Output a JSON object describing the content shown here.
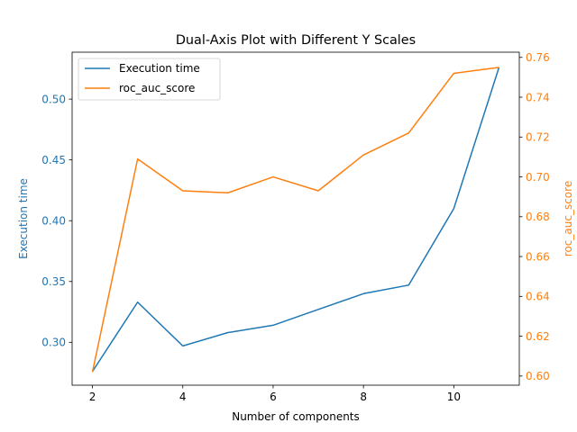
{
  "chart_data": {
    "type": "line",
    "title": "Dual-Axis Plot with Different Y Scales",
    "xlabel": "Number of components",
    "ylabel_left": "Execution time",
    "ylabel_right": "roc_auc_score",
    "x": [
      2,
      3,
      4,
      5,
      6,
      7,
      8,
      9,
      10,
      11
    ],
    "xlim": [
      1.55,
      11.45
    ],
    "xticks": [
      2,
      4,
      6,
      8,
      10
    ],
    "ylim_left": [
      0.2647,
      0.5386
    ],
    "yticks_left": [
      "0.30",
      "0.35",
      "0.40",
      "0.45",
      "0.50"
    ],
    "ylim_right": [
      0.5954,
      0.7626
    ],
    "yticks_right": [
      "0.60",
      "0.62",
      "0.64",
      "0.66",
      "0.68",
      "0.70",
      "0.72",
      "0.74",
      "0.76"
    ],
    "grid": false,
    "legend_position": "top-left",
    "series": [
      {
        "name": "Execution time",
        "axis": "left",
        "color": "#1f77b4",
        "values": [
          0.276,
          0.333,
          0.297,
          0.308,
          0.314,
          0.327,
          0.34,
          0.347,
          0.41,
          0.526
        ]
      },
      {
        "name": "roc_auc_score",
        "axis": "right",
        "color": "#ff7f0e",
        "values": [
          0.602,
          0.709,
          0.693,
          0.692,
          0.7,
          0.693,
          0.711,
          0.722,
          0.752,
          0.755
        ]
      }
    ]
  }
}
